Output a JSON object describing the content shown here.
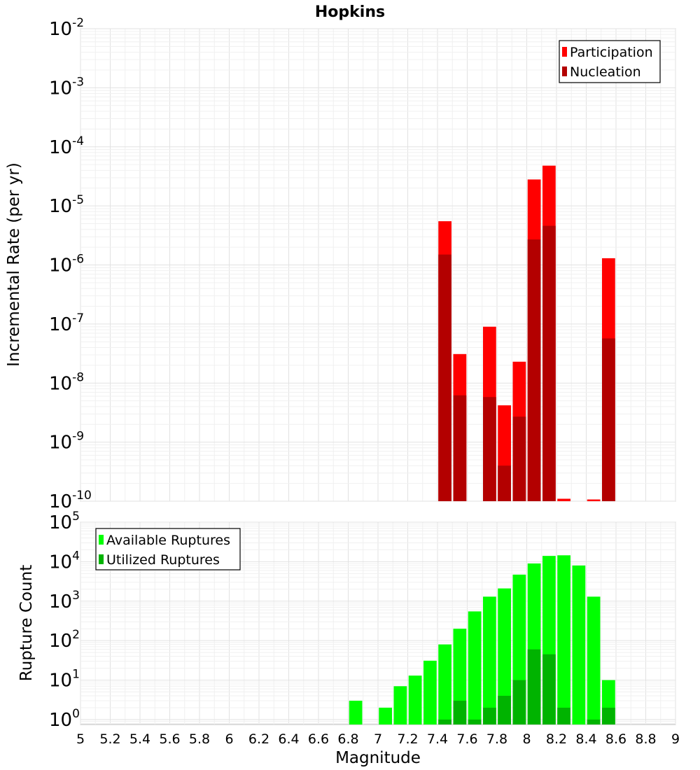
{
  "chart_data": {
    "title": "Hopkins",
    "xlabel": "Magnitude",
    "xlim": [
      5,
      9
    ],
    "x_ticks": [
      "5",
      "5.2",
      "5.4",
      "5.6",
      "5.8",
      "6",
      "6.2",
      "6.4",
      "6.6",
      "6.8",
      "7",
      "7.2",
      "7.4",
      "7.6",
      "7.8",
      "8",
      "8.2",
      "8.4",
      "8.6",
      "8.8",
      "9"
    ],
    "panels": [
      {
        "type": "bar",
        "ylabel": "Incremental Rate (per yr)",
        "yscale": "log",
        "ylim": [
          1e-10,
          0.01
        ],
        "y_ticks": [
          {
            "base": "10",
            "exp": "-10"
          },
          {
            "base": "10",
            "exp": "-9"
          },
          {
            "base": "10",
            "exp": "-8"
          },
          {
            "base": "10",
            "exp": "-7"
          },
          {
            "base": "10",
            "exp": "-6"
          },
          {
            "base": "10",
            "exp": "-5"
          },
          {
            "base": "10",
            "exp": "-4"
          },
          {
            "base": "10",
            "exp": "-3"
          },
          {
            "base": "10",
            "exp": "-2"
          }
        ],
        "grid": true,
        "legend_position": "top-right",
        "series": [
          {
            "name": "Participation",
            "color": "#ff0000",
            "points": [
              {
                "x": 7.45,
                "y": 5.5e-06
              },
              {
                "x": 7.55,
                "y": 3.1e-08
              },
              {
                "x": 7.75,
                "y": 9e-08
              },
              {
                "x": 7.85,
                "y": 4.2e-09
              },
              {
                "x": 7.95,
                "y": 2.3e-08
              },
              {
                "x": 8.05,
                "y": 2.8e-05
              },
              {
                "x": 8.15,
                "y": 4.8e-05
              },
              {
                "x": 8.25,
                "y": 1.1e-10
              },
              {
                "x": 8.45,
                "y": 1.07e-10
              },
              {
                "x": 8.55,
                "y": 1.3e-06
              }
            ]
          },
          {
            "name": "Nucleation",
            "color": "#b30000",
            "points": [
              {
                "x": 7.45,
                "y": 1.5e-06
              },
              {
                "x": 7.55,
                "y": 6.2e-09
              },
              {
                "x": 7.75,
                "y": 5.8e-09
              },
              {
                "x": 7.85,
                "y": 4e-10
              },
              {
                "x": 7.95,
                "y": 2.7e-09
              },
              {
                "x": 8.05,
                "y": 2.7e-06
              },
              {
                "x": 8.15,
                "y": 4.6e-06
              },
              {
                "x": 8.55,
                "y": 5.7e-08
              }
            ]
          }
        ]
      },
      {
        "type": "bar",
        "ylabel": "Rupture Count",
        "yscale": "log",
        "ylim": [
          0.75,
          100000.0
        ],
        "y_ticks": [
          {
            "base": "10",
            "exp": "0"
          },
          {
            "base": "10",
            "exp": "1"
          },
          {
            "base": "10",
            "exp": "2"
          },
          {
            "base": "10",
            "exp": "3"
          },
          {
            "base": "10",
            "exp": "4"
          },
          {
            "base": "10",
            "exp": "5"
          }
        ],
        "grid": true,
        "legend_position": "top-left",
        "series": [
          {
            "name": "Available Ruptures",
            "color": "#00ff00",
            "points": [
              {
                "x": 6.85,
                "y": 3
              },
              {
                "x": 7.05,
                "y": 2
              },
              {
                "x": 7.15,
                "y": 7
              },
              {
                "x": 7.25,
                "y": 13
              },
              {
                "x": 7.35,
                "y": 31
              },
              {
                "x": 7.45,
                "y": 80
              },
              {
                "x": 7.55,
                "y": 200
              },
              {
                "x": 7.65,
                "y": 550
              },
              {
                "x": 7.75,
                "y": 1300
              },
              {
                "x": 7.85,
                "y": 2100
              },
              {
                "x": 7.95,
                "y": 4700
              },
              {
                "x": 8.05,
                "y": 9000
              },
              {
                "x": 8.15,
                "y": 14000
              },
              {
                "x": 8.25,
                "y": 14500
              },
              {
                "x": 8.35,
                "y": 8000
              },
              {
                "x": 8.45,
                "y": 1300
              },
              {
                "x": 8.55,
                "y": 10
              }
            ]
          },
          {
            "name": "Utilized Ruptures",
            "color": "#00b300",
            "points": [
              {
                "x": 7.45,
                "y": 1
              },
              {
                "x": 7.55,
                "y": 3
              },
              {
                "x": 7.65,
                "y": 1
              },
              {
                "x": 7.75,
                "y": 2
              },
              {
                "x": 7.85,
                "y": 4
              },
              {
                "x": 7.95,
                "y": 10
              },
              {
                "x": 8.05,
                "y": 60
              },
              {
                "x": 8.15,
                "y": 45
              },
              {
                "x": 8.25,
                "y": 2
              },
              {
                "x": 8.45,
                "y": 1
              },
              {
                "x": 8.55,
                "y": 2
              }
            ]
          }
        ]
      }
    ]
  }
}
